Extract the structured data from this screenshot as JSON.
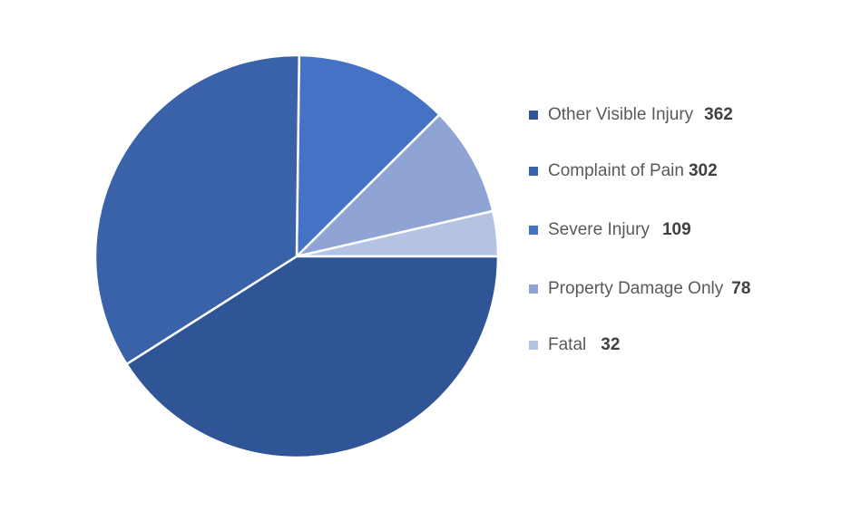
{
  "chart_data": {
    "type": "pie",
    "categories": [
      "Other Visible Injury",
      "Complaint of Pain",
      "Severe Injury",
      "Property Damage Only",
      "Fatal"
    ],
    "values": [
      362,
      302,
      109,
      78,
      32
    ],
    "value_labels": [
      "362",
      "302",
      "109",
      "78",
      "32"
    ],
    "colors": [
      "#2F5597",
      "#3A62A8",
      "#4472C4",
      "#8FA3D4",
      "#B4C3E4"
    ],
    "title": "",
    "legend_position": "right",
    "start_angle": "3 o'clock, counter-clockwise"
  }
}
